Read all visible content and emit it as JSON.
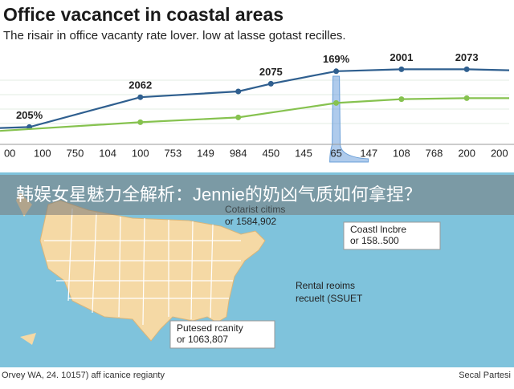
{
  "chart_data": {
    "type": "line",
    "title": "Office vacancet in coastal areas",
    "subtitle": "The risair in office vacanty rate lover. low at lasse gotast recilles.",
    "xlim": [
      -0.3,
      15.3
    ],
    "xticks": [
      {
        "value": 0,
        "label": "00"
      },
      {
        "value": 1,
        "label": "100"
      },
      {
        "value": 2,
        "label": "750"
      },
      {
        "value": 3,
        "label": "104"
      },
      {
        "value": 4,
        "label": "100"
      },
      {
        "value": 5,
        "label": "753"
      },
      {
        "value": 6,
        "label": "149"
      },
      {
        "value": 7,
        "label": "984"
      },
      {
        "value": 8,
        "label": "450"
      },
      {
        "value": 9,
        "label": "145"
      },
      {
        "value": 10,
        "label": "65"
      },
      {
        "value": 11,
        "label": "147"
      },
      {
        "value": 12,
        "label": "108"
      },
      {
        "value": 13,
        "label": "768"
      },
      {
        "value": 14,
        "label": "200"
      },
      {
        "value": 15,
        "label": "200"
      }
    ],
    "ylim": [
      0,
      100
    ],
    "highlight_x": 10,
    "series": [
      {
        "color": "#2f5f8f",
        "x": [
          -0.3,
          0.6,
          4,
          7,
          8,
          10,
          12,
          14,
          15.3
        ],
        "values": [
          17,
          18,
          49,
          55,
          63,
          76,
          78,
          78,
          77
        ],
        "labels": [
          null,
          "205%",
          "2062",
          null,
          "2075",
          "169%",
          "2001",
          "2073",
          null
        ]
      },
      {
        "color": "#86c24f",
        "x": [
          -0.3,
          4,
          7,
          10,
          12,
          14,
          15.3
        ],
        "values": [
          14,
          23,
          28,
          43,
          47,
          48,
          48
        ]
      }
    ]
  },
  "banner": "韩娱女星魅力全解析：Jennie的奶凶气质如何拿捏？",
  "map": {
    "callout_top": [
      "Cotarist citims",
      "or 1584,902"
    ],
    "callout_right": [
      "Coastl lncbre",
      "or 158..500"
    ],
    "note": [
      "Rental reoims",
      "recuelt (SSUET"
    ],
    "callout_bottom": [
      "Putesed rcanity",
      "or 1063,807"
    ]
  },
  "footer": {
    "left": "Orvey WA, 24. 10157) aff icanice regianty",
    "right": "Secal Partesi"
  }
}
